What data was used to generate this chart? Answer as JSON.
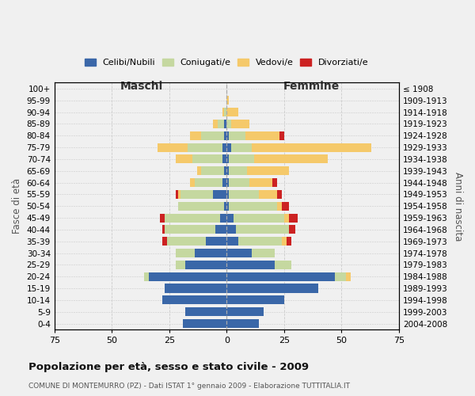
{
  "age_groups": [
    "0-4",
    "5-9",
    "10-14",
    "15-19",
    "20-24",
    "25-29",
    "30-34",
    "35-39",
    "40-44",
    "45-49",
    "50-54",
    "55-59",
    "60-64",
    "65-69",
    "70-74",
    "75-79",
    "80-84",
    "85-89",
    "90-94",
    "95-99",
    "100+"
  ],
  "birth_years": [
    "2004-2008",
    "1999-2003",
    "1994-1998",
    "1989-1993",
    "1984-1988",
    "1979-1983",
    "1974-1978",
    "1969-1973",
    "1964-1968",
    "1959-1963",
    "1954-1958",
    "1949-1953",
    "1944-1948",
    "1939-1943",
    "1934-1938",
    "1929-1933",
    "1924-1928",
    "1919-1923",
    "1914-1918",
    "1909-1913",
    "≤ 1908"
  ],
  "males": {
    "celibi": [
      19,
      18,
      28,
      27,
      34,
      18,
      14,
      9,
      5,
      3,
      1,
      6,
      2,
      1,
      2,
      2,
      1,
      1,
      0,
      0,
      0
    ],
    "coniugati": [
      0,
      0,
      0,
      0,
      2,
      4,
      8,
      17,
      22,
      24,
      20,
      14,
      12,
      10,
      13,
      15,
      10,
      3,
      1,
      0,
      0
    ],
    "vedovi": [
      0,
      0,
      0,
      0,
      0,
      0,
      0,
      0,
      0,
      0,
      0,
      1,
      2,
      2,
      7,
      13,
      5,
      2,
      1,
      0,
      0
    ],
    "divorziati": [
      0,
      0,
      0,
      0,
      0,
      0,
      0,
      2,
      1,
      2,
      0,
      1,
      0,
      0,
      0,
      0,
      0,
      0,
      0,
      0,
      0
    ]
  },
  "females": {
    "nubili": [
      14,
      16,
      25,
      40,
      47,
      21,
      11,
      5,
      4,
      3,
      1,
      1,
      1,
      1,
      1,
      2,
      1,
      0,
      0,
      0,
      0
    ],
    "coniugate": [
      0,
      0,
      0,
      0,
      5,
      7,
      10,
      19,
      23,
      22,
      21,
      13,
      9,
      8,
      11,
      9,
      7,
      2,
      0,
      0,
      0
    ],
    "vedove": [
      0,
      0,
      0,
      0,
      2,
      0,
      0,
      2,
      0,
      2,
      2,
      8,
      10,
      18,
      32,
      52,
      15,
      8,
      5,
      1,
      0
    ],
    "divorziate": [
      0,
      0,
      0,
      0,
      0,
      0,
      0,
      2,
      3,
      4,
      3,
      2,
      2,
      0,
      0,
      0,
      2,
      0,
      0,
      0,
      0
    ]
  },
  "colors": {
    "celibi": "#3A67A8",
    "coniugati": "#C5D8A0",
    "vedovi": "#F5C96A",
    "divorziati": "#CC2222"
  },
  "title": "Popolazione per età, sesso e stato civile - 2009",
  "subtitle": "COMUNE DI MONTEMURRO (PZ) - Dati ISTAT 1° gennaio 2009 - Elaborazione TUTTITALIA.IT",
  "xlabel_left": "Maschi",
  "xlabel_right": "Femmine",
  "ylabel_left": "Fasce di età",
  "ylabel_right": "Anni di nascita",
  "xlim": 75,
  "background_color": "#f0f0f0",
  "legend_labels": [
    "Celibi/Nubili",
    "Coniugati/e",
    "Vedovi/e",
    "Divorziati/e"
  ]
}
